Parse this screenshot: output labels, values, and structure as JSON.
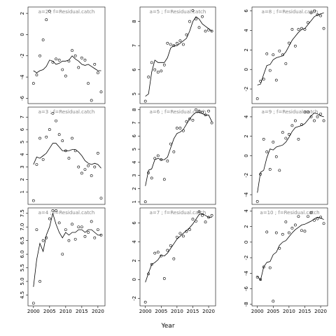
{
  "xlabel": "Year",
  "chart_data": [
    {
      "type": "scatter-line",
      "title": "a=2 ; f=Residual.catch",
      "x": [
        2000,
        2001,
        2002,
        2003,
        2004,
        2005,
        2006,
        2007,
        2008,
        2009,
        2010,
        2011,
        2012,
        2013,
        2014,
        2015,
        2016,
        2017,
        2018,
        2019,
        2020,
        2021
      ],
      "xlim": [
        1998.3,
        2022.2
      ],
      "ylim": [
        -6.5,
        2.6
      ],
      "yticks": [
        -6,
        -4,
        -2,
        0,
        2
      ],
      "series": [
        {
          "style": "points",
          "values": [
            -4.6,
            -3.8,
            -2.0,
            -0.5,
            1.4,
            2.2,
            -2.6,
            -2.3,
            -2.4,
            -3.3,
            -3.9,
            -2.5,
            -1.5,
            -2.0,
            -3.1,
            -2.2,
            -2.4,
            -4.6,
            -6.2,
            -2.8,
            -3.6,
            -5.4
          ]
        },
        {
          "style": "line",
          "values": [
            -3.4,
            -3.6,
            -3.4,
            -3.3,
            -3.0,
            -2.4,
            -2.5,
            -2.8,
            -2.7,
            -2.5,
            -2.5,
            -2.4,
            -2.0,
            -2.3,
            -2.5,
            -2.8,
            -2.9,
            -2.8,
            -3.0,
            -3.2,
            -3.4,
            -3.4
          ]
        }
      ]
    },
    {
      "type": "scatter-line",
      "title": "a=5 ; f=Residual.catch",
      "x": [
        2000,
        2001,
        2002,
        2003,
        2004,
        2005,
        2006,
        2007,
        2008,
        2009,
        2010,
        2011,
        2012,
        2013,
        2014,
        2015,
        2016,
        2017,
        2018,
        2019,
        2020,
        2021
      ],
      "xlim": [
        1998.3,
        2022.2
      ],
      "ylim": [
        4.6,
        8.6
      ],
      "yticks": [
        5,
        6,
        7,
        8
      ],
      "series": [
        {
          "style": "points",
          "values": [
            4.7,
            5.7,
            6.3,
            6.0,
            5.9,
            5.95,
            6.2,
            7.1,
            7.05,
            7.0,
            7.1,
            7.2,
            7.05,
            7.45,
            8.0,
            8.45,
            8.1,
            7.75,
            8.2,
            7.6,
            7.65,
            7.6
          ]
        },
        {
          "style": "line",
          "values": [
            4.9,
            5.0,
            5.9,
            6.4,
            6.3,
            6.3,
            6.3,
            6.5,
            6.9,
            7.0,
            7.0,
            7.1,
            7.2,
            7.3,
            7.6,
            8.0,
            8.2,
            8.1,
            7.9,
            7.8,
            7.7,
            7.6
          ]
        }
      ]
    },
    {
      "type": "scatter-line",
      "title": "a=8 ; f=Residual.catch",
      "x": [
        2000,
        2001,
        2002,
        2003,
        2004,
        2005,
        2006,
        2007,
        2008,
        2009,
        2010,
        2011,
        2012,
        2013,
        2014,
        2015,
        2016,
        2017,
        2018,
        2019,
        2020,
        2021
      ],
      "xlim": [
        1998.3,
        2022.2
      ],
      "ylim": [
        -3.5,
        6.4
      ],
      "yticks": [
        -2,
        0,
        2,
        4,
        6
      ],
      "series": [
        {
          "style": "points",
          "values": [
            -3.0,
            -1.2,
            -1.0,
            1.6,
            -0.1,
            1.5,
            -1.1,
            1.9,
            1.5,
            0.6,
            2.7,
            4.1,
            2.4,
            4.1,
            4.2,
            4.1,
            4.8,
            5.8,
            6.0,
            5.6,
            5.5,
            4.2
          ]
        },
        {
          "style": "line",
          "values": [
            -1.6,
            -1.5,
            -0.5,
            0.4,
            0.5,
            1.0,
            1.2,
            1.3,
            1.4,
            1.8,
            2.4,
            3.0,
            3.4,
            3.8,
            4.1,
            4.2,
            4.6,
            5.0,
            5.4,
            5.6,
            5.7,
            5.8
          ]
        }
      ]
    },
    {
      "type": "scatter-line",
      "title": "a=3 ; f=Residual.catch",
      "x": [
        2000,
        2001,
        2002,
        2003,
        2004,
        2005,
        2006,
        2007,
        2008,
        2009,
        2010,
        2011,
        2012,
        2013,
        2014,
        2015,
        2016,
        2017,
        2018,
        2019,
        2020,
        2021
      ],
      "xlim": [
        1998.3,
        2022.2
      ],
      "ylim": [
        0,
        7.8
      ],
      "yticks": [
        1,
        2,
        3,
        4,
        5,
        6,
        7
      ],
      "series": [
        {
          "style": "points",
          "values": [
            0.3,
            3.2,
            5.3,
            3.6,
            5.4,
            6.0,
            7.3,
            6.7,
            5.6,
            5.1,
            4.3,
            3.7,
            5.3,
            4.3,
            3.0,
            2.5,
            2.8,
            3.1,
            2.3,
            3.0,
            4.1,
            0.5
          ]
        },
        {
          "style": "line",
          "values": [
            3.2,
            3.8,
            3.7,
            3.9,
            4.1,
            4.5,
            4.9,
            4.9,
            4.6,
            4.3,
            4.3,
            4.3,
            4.4,
            4.4,
            4.2,
            3.9,
            3.5,
            3.3,
            3.2,
            3.3,
            3.2,
            2.9
          ]
        }
      ]
    },
    {
      "type": "scatter-line",
      "title": "a=6 ; f=Residual.catch",
      "x": [
        2000,
        2001,
        2002,
        2003,
        2004,
        2005,
        2006,
        2007,
        2008,
        2009,
        2010,
        2011,
        2012,
        2013,
        2014,
        2015,
        2016,
        2017,
        2018,
        2019,
        2020,
        2021
      ],
      "xlim": [
        1998.3,
        2022.2
      ],
      "ylim": [
        0.8,
        8.2
      ],
      "yticks": [
        1,
        2,
        3,
        4,
        5,
        6,
        7,
        8
      ],
      "series": [
        {
          "style": "points",
          "values": [
            1.0,
            3.2,
            2.8,
            4.3,
            4.5,
            4.2,
            2.7,
            4.1,
            5.4,
            4.8,
            6.6,
            6.6,
            6.4,
            7.1,
            7.3,
            7.2,
            8.0,
            7.9,
            7.8,
            7.6,
            7.9,
            7.0
          ]
        },
        {
          "style": "line",
          "values": [
            2.2,
            3.4,
            3.5,
            4.2,
            4.3,
            4.2,
            4.2,
            4.4,
            5.1,
            5.8,
            6.2,
            6.3,
            6.5,
            6.9,
            7.3,
            7.6,
            7.8,
            7.8,
            7.7,
            7.6,
            7.6,
            7.1
          ]
        }
      ]
    },
    {
      "type": "scatter-line",
      "title": "a=9 ; f=Residual.catch",
      "x": [
        2000,
        2001,
        2002,
        2003,
        2004,
        2005,
        2006,
        2007,
        2008,
        2009,
        2010,
        2011,
        2012,
        2013,
        2014,
        2015,
        2016,
        2017,
        2018,
        2019,
        2020,
        2021
      ],
      "xlim": [
        1998.3,
        2022.2
      ],
      "ylim": [
        -5,
        5
      ],
      "yticks": [
        -4,
        -2,
        0,
        2,
        4
      ],
      "series": [
        {
          "style": "points",
          "values": [
            -4.7,
            -1.9,
            1.7,
            0.4,
            -1.4,
            1.4,
            -0.1,
            -1.5,
            2.4,
            1.8,
            2.2,
            3.1,
            3.6,
            1.7,
            3.2,
            4.5,
            4.5,
            4.0,
            3.6,
            4.0,
            4.3,
            3.6
          ]
        },
        {
          "style": "line",
          "values": [
            -3.8,
            -1.7,
            -1.5,
            -0.2,
            0.7,
            0.6,
            0.9,
            1.0,
            1.1,
            1.4,
            1.9,
            2.5,
            2.9,
            3.0,
            3.1,
            3.3,
            3.7,
            4.1,
            4.4,
            4.3,
            4.1,
            4.0
          ]
        }
      ]
    },
    {
      "type": "scatter-line",
      "title": "a=4 ; f=Residual.catch",
      "x": [
        2000,
        2001,
        2002,
        2003,
        2004,
        2005,
        2006,
        2007,
        2008,
        2009,
        2010,
        2011,
        2012,
        2013,
        2014,
        2015,
        2016,
        2017,
        2018,
        2019,
        2020,
        2021
      ],
      "xlim": [
        1998.3,
        2022.2
      ],
      "ylim": [
        4.1,
        7.7
      ],
      "yticks": [
        4.5,
        {
          "value": 5,
          "label": "5.0"
        },
        5.5,
        {
          "value": 6,
          "label": "6.0"
        },
        6.5,
        {
          "value": 7,
          "label": "7.0"
        },
        7.5
      ],
      "xticks": [
        2000,
        2005,
        2010,
        2015,
        2020
      ],
      "series": [
        {
          "style": "points",
          "values": [
            4.2,
            6.9,
            5.0,
            6.5,
            6.6,
            7.3,
            7.6,
            7.6,
            7.15,
            6.0,
            6.9,
            6.5,
            7.1,
            6.55,
            7.0,
            7.0,
            6.65,
            6.8,
            7.2,
            6.6,
            6.9,
            6.7
          ]
        },
        {
          "style": "line",
          "values": [
            4.8,
            5.8,
            6.4,
            6.1,
            6.7,
            7.0,
            7.5,
            7.1,
            6.8,
            6.6,
            6.8,
            6.7,
            6.8,
            6.8,
            6.9,
            6.9,
            6.8,
            6.9,
            6.9,
            6.8,
            6.7,
            6.7
          ]
        }
      ]
    },
    {
      "type": "scatter-line",
      "title": "a=7 ; f=Residual.catch",
      "x": [
        2000,
        2001,
        2002,
        2003,
        2004,
        2005,
        2006,
        2007,
        2008,
        2009,
        2010,
        2011,
        2012,
        2013,
        2014,
        2015,
        2016,
        2017,
        2018,
        2019,
        2020,
        2021
      ],
      "xlim": [
        1998.3,
        2022.2
      ],
      "ylim": [
        -2.8,
        7.6
      ],
      "yticks": [
        -2,
        0,
        2,
        4,
        6
      ],
      "xticks": [
        2000,
        2005,
        2010,
        2015,
        2020
      ],
      "series": [
        {
          "style": "points",
          "values": [
            -2.4,
            0.6,
            1.6,
            2.8,
            2.9,
            2.5,
            0.1,
            3.1,
            3.6,
            2.2,
            4.5,
            4.9,
            4.6,
            5.1,
            5.3,
            6.4,
            6.2,
            7.2,
            6.8,
            6.1,
            6.6,
            6.8
          ]
        },
        {
          "style": "line",
          "values": [
            -0.3,
            0.7,
            1.6,
            1.8,
            2.1,
            2.6,
            2.5,
            2.8,
            3.3,
            3.8,
            4.3,
            4.6,
            4.9,
            5.2,
            5.5,
            5.9,
            6.4,
            6.9,
            7.0,
            6.8,
            6.6,
            6.6
          ]
        }
      ]
    },
    {
      "type": "scatter-line",
      "title": "a=10 ; f=Residual.catch",
      "x": [
        2000,
        2001,
        2002,
        2003,
        2004,
        2005,
        2006,
        2007,
        2008,
        2009,
        2010,
        2011,
        2012,
        2013,
        2014,
        2015,
        2016,
        2017,
        2018,
        2019,
        2020,
        2021
      ],
      "xlim": [
        1998.3,
        2022.2
      ],
      "ylim": [
        -8.2,
        4.4
      ],
      "yticks": [
        -8,
        -6,
        -4,
        -2,
        0,
        2,
        4
      ],
      "xticks": [
        2000,
        2005,
        2010,
        2015,
        2020
      ],
      "series": [
        {
          "style": "points",
          "values": [
            -4.5,
            -4.8,
            -3.2,
            1.3,
            -3.3,
            -7.6,
            1.2,
            -0.8,
            1.0,
            2.6,
            1.2,
            1.8,
            2.2,
            3.3,
            1.5,
            1.4,
            3.3,
            3.8,
            2.8,
            3.0,
            3.2,
            2.4
          ]
        },
        {
          "style": "line",
          "values": [
            -4.4,
            -4.9,
            -3.2,
            -2.6,
            -2.5,
            -1.6,
            -1.3,
            -0.4,
            0.0,
            0.2,
            0.7,
            1.2,
            1.6,
            1.9,
            2.2,
            2.3,
            2.5,
            2.7,
            3.0,
            3.2,
            3.1,
            2.9
          ]
        }
      ]
    }
  ]
}
